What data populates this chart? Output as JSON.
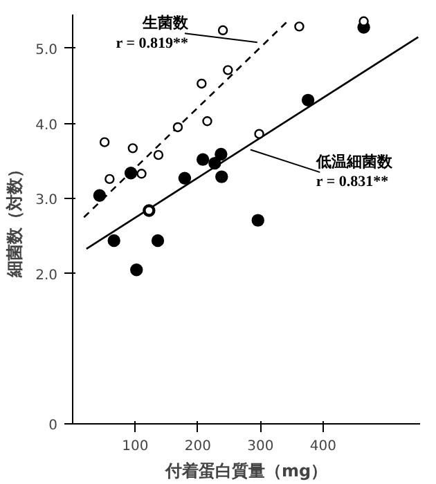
{
  "chart_data": {
    "type": "scatter",
    "xlabel": "付着蛋白質量（mg）",
    "ylabel": "細菌数（対数）",
    "xlim": [
      0,
      555
    ],
    "ylim": [
      0,
      5.45
    ],
    "xticks": [
      100,
      200,
      300,
      400
    ],
    "yticks": [
      0,
      {
        "value": 2,
        "label": "2.0"
      },
      {
        "value": 3,
        "label": "3.0"
      },
      {
        "value": 4,
        "label": "4.0"
      },
      {
        "value": 5,
        "label": "5.0"
      }
    ],
    "grid": false,
    "series": [
      {
        "marker": "circle",
        "color": "#ffffff",
        "x": [
          240,
          362,
          465,
          248,
          206,
          215,
          168,
          298,
          51,
          96,
          137,
          59,
          110,
          122
        ],
        "values": [
          5.24,
          5.29,
          5.36,
          4.71,
          4.53,
          4.03,
          3.95,
          3.86,
          3.75,
          3.67,
          3.58,
          3.26,
          3.33,
          2.84
        ]
      },
      {
        "marker": "circle",
        "color": "#000000",
        "x": [
          465,
          376,
          237,
          208,
          227,
          93,
          179,
          238,
          43,
          66,
          136,
          102,
          296,
          122
        ],
        "values": [
          5.28,
          4.31,
          3.59,
          3.52,
          3.47,
          3.34,
          3.27,
          3.29,
          3.04,
          2.44,
          2.44,
          2.05,
          2.71,
          2.84
        ]
      },
      {
        "type": "line",
        "line_style": "dashed",
        "marker": "none",
        "color": "#000000",
        "x": [
          18,
          347
        ],
        "values": [
          2.75,
          5.39
        ]
      },
      {
        "type": "line",
        "line_style": "solid",
        "marker": "none",
        "color": "#000000",
        "x": [
          22,
          552
        ],
        "values": [
          2.33,
          5.15
        ]
      }
    ],
    "annotations": [
      {
        "text": "生菌数\nr = 0.819**",
        "x": 295,
        "y": 5.08
      },
      {
        "text": "低温細菌数\nr = 0.831**",
        "x": 284,
        "y": 3.65
      }
    ]
  }
}
